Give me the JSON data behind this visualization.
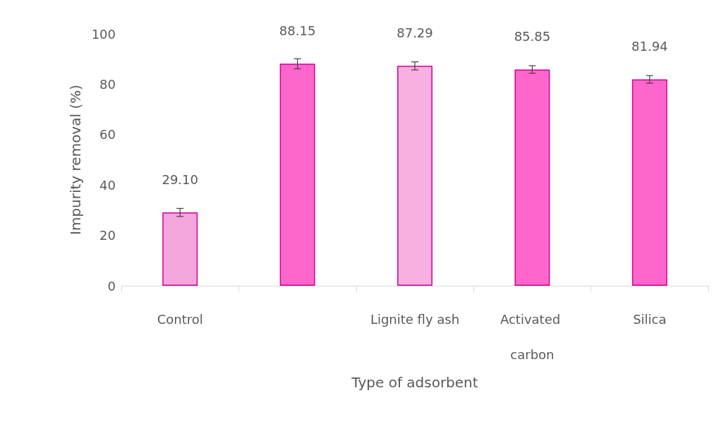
{
  "chart_data": {
    "type": "bar",
    "xlabel": "Type of adsorbent",
    "ylabel": "Impurity removal (%)",
    "categories": [
      "Control",
      null,
      "Lignite fly ash",
      "Activated carbon",
      "Silica"
    ],
    "values": [
      29.1,
      88.15,
      87.29,
      85.85,
      81.94
    ],
    "colors": [
      "#f4a6dc",
      "#ff66cc",
      "#f7b0e0",
      "#ff66cc",
      "#ff66cc"
    ],
    "errors": [
      1.6,
      2,
      1.6,
      1.5,
      1.5
    ],
    "value_labels": [
      "29.10",
      "88.15",
      "87.29",
      "85.85",
      "81.94"
    ],
    "ylim": [
      0,
      100
    ],
    "yticks": [
      0,
      20,
      40,
      60,
      80,
      100
    ],
    "grid": false
  }
}
